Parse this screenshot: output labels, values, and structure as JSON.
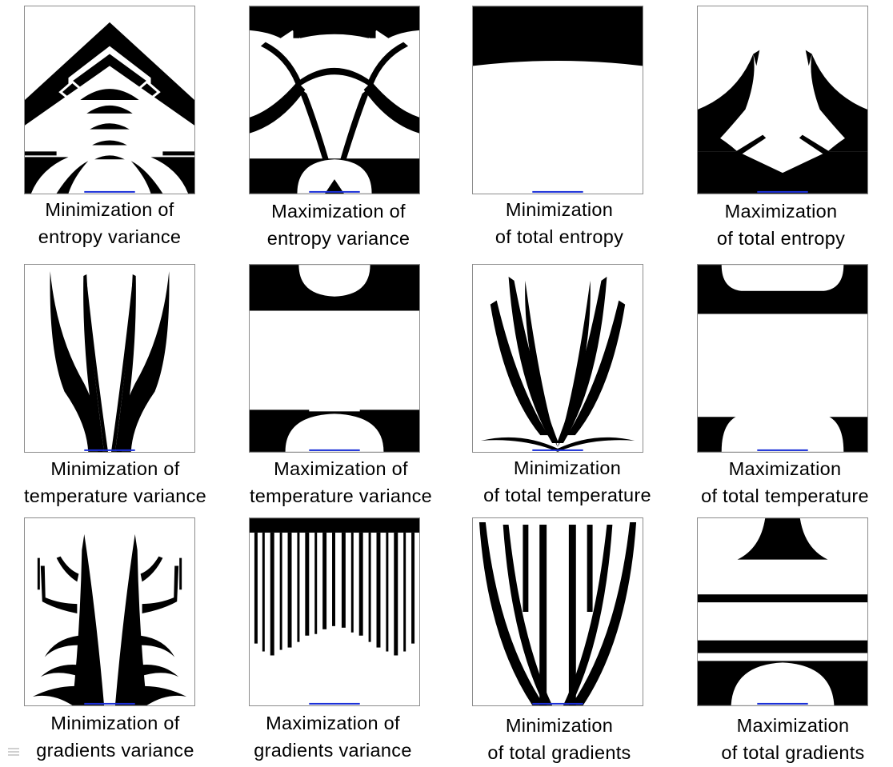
{
  "figure": {
    "captions": [
      {
        "line1": "Minimization of",
        "line2": "entropy variance"
      },
      {
        "line1": "Maximization of",
        "line2": "entropy variance"
      },
      {
        "line1": "Minimization",
        "line2": "of total entropy"
      },
      {
        "line1": "Maximization",
        "line2": "of total entropy"
      },
      {
        "line1": "Minimization of",
        "line2": "temperature variance"
      },
      {
        "line1": "Maximization of",
        "line2": "temperature variance"
      },
      {
        "line1": "Minimization",
        "line2": "of total temperature"
      },
      {
        "line1": "Maximization",
        "line2": "of total temperature"
      },
      {
        "line1": "Minimization of",
        "line2": "gradients variance"
      },
      {
        "line1": "Maximization of",
        "line2": "gradients variance"
      },
      {
        "line1": "Minimization",
        "line2": "of total gradients"
      },
      {
        "line1": "Maximization",
        "line2": "of total gradients"
      }
    ]
  },
  "colors": {
    "material": "#000000",
    "void": "#ffffff",
    "heat_sink_marker": "#1a2fd8",
    "frame": "#8c8c8c"
  }
}
